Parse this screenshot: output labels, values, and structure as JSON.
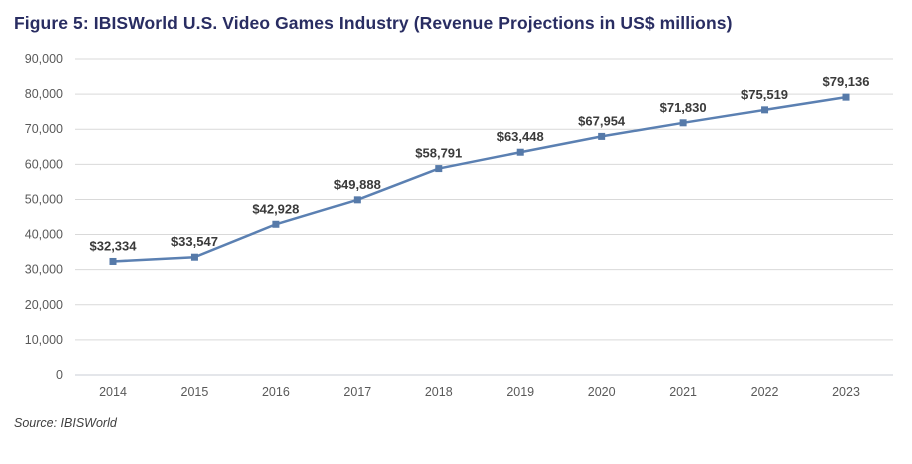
{
  "figure": {
    "title": "Figure 5: IBISWorld U.S. Video Games Industry (Revenue Projections in US$ millions)",
    "source": "Source: IBISWorld"
  },
  "chart_data": {
    "type": "line",
    "title": "Figure 5: IBISWorld U.S. Video Games Industry (Revenue Projections in US$ millions)",
    "xlabel": "",
    "ylabel": "",
    "categories": [
      "2014",
      "2015",
      "2016",
      "2017",
      "2018",
      "2019",
      "2020",
      "2021",
      "2022",
      "2023"
    ],
    "series": [
      {
        "name": "Revenue (US$ millions)",
        "values": [
          32334,
          33547,
          42928,
          49888,
          58791,
          63448,
          67954,
          71830,
          75519,
          79136
        ]
      }
    ],
    "data_labels": [
      "$32,334",
      "$33,547",
      "$42,928",
      "$49,888",
      "$58,791",
      "$63,448",
      "$67,954",
      "$71,830",
      "$75,519",
      "$79,136"
    ],
    "ylim": [
      0,
      90000
    ],
    "ytick_step": 10000,
    "ytick_labels": [
      "0",
      "10,000",
      "20,000",
      "30,000",
      "40,000",
      "50,000",
      "60,000",
      "70,000",
      "80,000",
      "90,000"
    ],
    "grid": "horizontal",
    "legend": "none",
    "marker_shape": "square",
    "colors": {
      "line": "#5b80b2",
      "marker": "#567aa9",
      "gridline": "#d9d9d9",
      "bottom_axis": "#c9cdd4",
      "axis_tick_label": "#595959",
      "data_label": "#3a3a3a",
      "title": "#292d62",
      "source_text": "#3f3f3f",
      "background": "#ffffff"
    }
  }
}
